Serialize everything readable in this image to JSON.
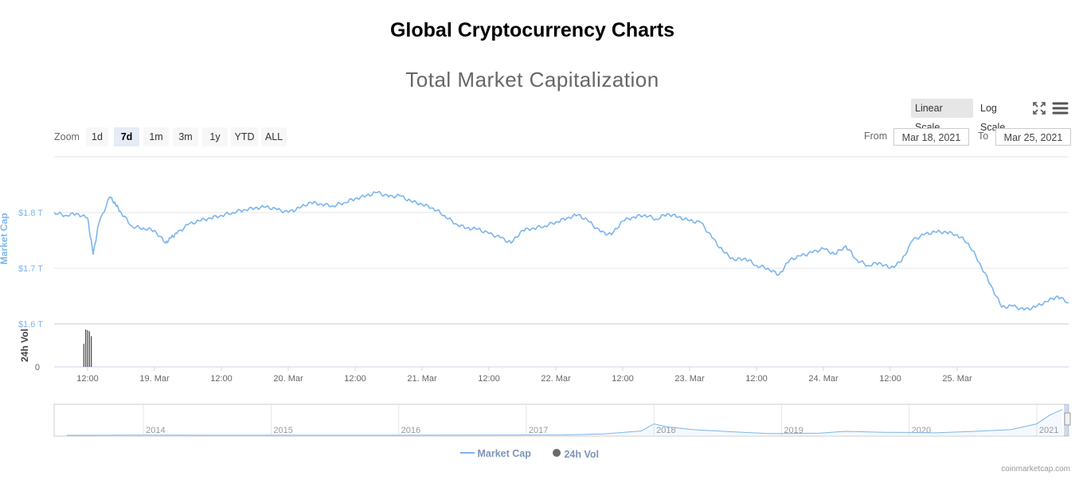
{
  "page_title": "Global Cryptocurrency Charts",
  "toolbar": {
    "linear_scale": "Linear Scale",
    "log_scale": "Log Scale",
    "zoom_label": "Zoom",
    "zoom_buttons": [
      "1d",
      "7d",
      "1m",
      "3m",
      "1y",
      "YTD",
      "ALL"
    ],
    "zoom_selected": "7d",
    "from_label": "From",
    "from_value": "Mar 18, 2021",
    "to_label": "To",
    "to_value": "Mar 25, 2021",
    "icons": [
      "fullscreen-icon",
      "menu-icon"
    ]
  },
  "legend": {
    "market_cap": "Market Cap",
    "volume": "24h Vol"
  },
  "credits": "coinmarketcap.com",
  "colors": {
    "market_cap": "#7cb5ec",
    "volume": "#434348",
    "grid": "#e6e6e6",
    "selected_bg": "#e6ebf5"
  },
  "chart_data": {
    "type": "line",
    "title": "Total Market Capitalization",
    "ylabel": "Market Cap",
    "y_ticks": [
      "$1.6 T",
      "$1.7 T",
      "$1.8 T"
    ],
    "y_tick_values": [
      1.6,
      1.7,
      1.8
    ],
    "ylim": [
      1.6,
      1.9
    ],
    "x_tick_labels": [
      "12:00",
      "19. Mar",
      "12:00",
      "20. Mar",
      "12:00",
      "21. Mar",
      "12:00",
      "22. Mar",
      "12:00",
      "23. Mar",
      "12:00",
      "24. Mar",
      "12:00",
      "25. Mar"
    ],
    "x_range": [
      "2021-03-18 06:00",
      "2021-03-25 20:00"
    ],
    "series": [
      {
        "name": "Market Cap",
        "unit": "trillion USD",
        "x": [
          "2021-03-18 06:00",
          "2021-03-18 08:00",
          "2021-03-18 10:00",
          "2021-03-18 12:00",
          "2021-03-18 13:00",
          "2021-03-18 14:00",
          "2021-03-18 16:00",
          "2021-03-18 17:00",
          "2021-03-18 18:00",
          "2021-03-18 20:00",
          "2021-03-18 22:00",
          "2021-03-19 00:00",
          "2021-03-19 02:00",
          "2021-03-19 03:00",
          "2021-03-19 04:00",
          "2021-03-19 06:00",
          "2021-03-19 08:00",
          "2021-03-19 10:00",
          "2021-03-19 12:00",
          "2021-03-19 14:00",
          "2021-03-19 16:00",
          "2021-03-19 18:00",
          "2021-03-19 20:00",
          "2021-03-19 22:00",
          "2021-03-20 00:00",
          "2021-03-20 02:00",
          "2021-03-20 04:00",
          "2021-03-20 06:00",
          "2021-03-20 08:00",
          "2021-03-20 10:00",
          "2021-03-20 12:00",
          "2021-03-20 14:00",
          "2021-03-20 16:00",
          "2021-03-20 18:00",
          "2021-03-20 20:00",
          "2021-03-20 22:00",
          "2021-03-21 00:00",
          "2021-03-21 02:00",
          "2021-03-21 04:00",
          "2021-03-21 06:00",
          "2021-03-21 08:00",
          "2021-03-21 10:00",
          "2021-03-21 12:00",
          "2021-03-21 14:00",
          "2021-03-21 16:00",
          "2021-03-21 18:00",
          "2021-03-21 20:00",
          "2021-03-21 22:00",
          "2021-03-22 00:00",
          "2021-03-22 02:00",
          "2021-03-22 04:00",
          "2021-03-22 06:00",
          "2021-03-22 08:00",
          "2021-03-22 10:00",
          "2021-03-22 12:00",
          "2021-03-22 14:00",
          "2021-03-22 16:00",
          "2021-03-22 18:00",
          "2021-03-22 20:00",
          "2021-03-22 22:00",
          "2021-03-23 00:00",
          "2021-03-23 02:00",
          "2021-03-23 04:00",
          "2021-03-23 06:00",
          "2021-03-23 08:00",
          "2021-03-23 10:00",
          "2021-03-23 12:00",
          "2021-03-23 14:00",
          "2021-03-23 16:00",
          "2021-03-23 18:00",
          "2021-03-23 20:00",
          "2021-03-23 22:00",
          "2021-03-24 00:00",
          "2021-03-24 02:00",
          "2021-03-24 04:00",
          "2021-03-24 06:00",
          "2021-03-24 08:00",
          "2021-03-24 10:00",
          "2021-03-24 12:00",
          "2021-03-24 14:00",
          "2021-03-24 16:00",
          "2021-03-24 18:00",
          "2021-03-24 20:00",
          "2021-03-24 22:00",
          "2021-03-25 00:00",
          "2021-03-25 02:00",
          "2021-03-25 04:00",
          "2021-03-25 06:00",
          "2021-03-25 08:00",
          "2021-03-25 10:00",
          "2021-03-25 12:00",
          "2021-03-25 14:00",
          "2021-03-25 16:00",
          "2021-03-25 18:00",
          "2021-03-25 20:00"
        ],
        "values": [
          1.8,
          1.795,
          1.798,
          1.79,
          1.725,
          1.78,
          1.828,
          1.815,
          1.8,
          1.775,
          1.772,
          1.768,
          1.745,
          1.755,
          1.762,
          1.778,
          1.785,
          1.79,
          1.795,
          1.8,
          1.805,
          1.808,
          1.81,
          1.805,
          1.8,
          1.808,
          1.818,
          1.815,
          1.812,
          1.818,
          1.825,
          1.83,
          1.836,
          1.828,
          1.83,
          1.82,
          1.815,
          1.808,
          1.795,
          1.78,
          1.772,
          1.77,
          1.762,
          1.755,
          1.745,
          1.768,
          1.772,
          1.776,
          1.783,
          1.79,
          1.796,
          1.783,
          1.765,
          1.76,
          1.785,
          1.792,
          1.796,
          1.788,
          1.798,
          1.792,
          1.785,
          1.782,
          1.755,
          1.73,
          1.715,
          1.718,
          1.705,
          1.7,
          1.688,
          1.715,
          1.722,
          1.728,
          1.735,
          1.725,
          1.74,
          1.715,
          1.705,
          1.71,
          1.7,
          1.712,
          1.75,
          1.76,
          1.765,
          1.765,
          1.76,
          1.745,
          1.71,
          1.67,
          1.63,
          1.632,
          1.625,
          1.63,
          1.64,
          1.65,
          1.638
        ]
      },
      {
        "name": "24h Vol",
        "x": [
          "2021-03-18 11:20",
          "2021-03-18 11:40",
          "2021-03-18 12:00",
          "2021-03-18 12:20",
          "2021-03-18 12:40"
        ],
        "values": [
          0.62,
          1.0,
          0.98,
          0.95,
          0.82
        ]
      }
    ],
    "navigator": {
      "x_tick_labels": [
        "2014",
        "2015",
        "2016",
        "2017",
        "2018",
        "2019",
        "2020",
        "2021"
      ],
      "years": [
        2013.4,
        2014,
        2015,
        2016,
        2016.5,
        2017,
        2017.3,
        2017.6,
        2017.9,
        2018.0,
        2018.1,
        2018.3,
        2018.6,
        2018.9,
        2019.0,
        2019.3,
        2019.5,
        2019.8,
        2020.0,
        2020.2,
        2020.5,
        2020.8,
        2021.0,
        2021.1,
        2021.2
      ],
      "values": [
        0.002,
        0.01,
        0.005,
        0.007,
        0.01,
        0.02,
        0.03,
        0.1,
        0.3,
        0.8,
        0.6,
        0.4,
        0.25,
        0.12,
        0.12,
        0.15,
        0.28,
        0.21,
        0.2,
        0.17,
        0.27,
        0.4,
        0.8,
        1.4,
        1.8
      ]
    }
  }
}
